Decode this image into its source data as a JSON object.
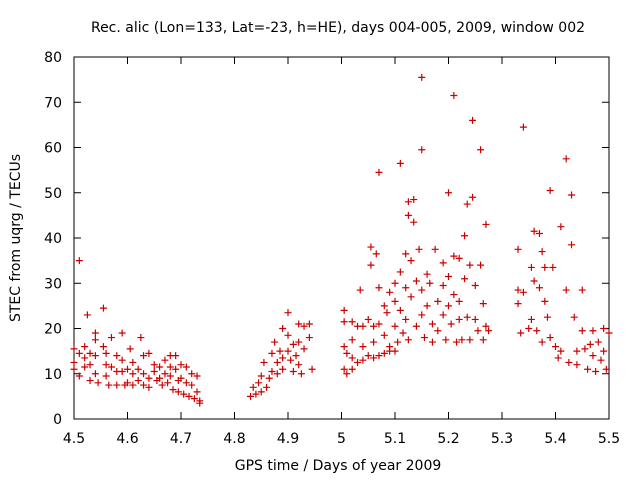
{
  "chart_data": {
    "type": "scatter",
    "title": "Rec. alic (Lon=133, Lat=-23, h=HE), days 004-005, 2009, window 002",
    "xlabel": "GPS time / Days of year 2009",
    "ylabel": "STEC from uqrg / TECUs",
    "xlim": [
      4.5,
      5.5
    ],
    "ylim": [
      0,
      80
    ],
    "x_ticks": [
      4.5,
      4.6,
      4.7,
      4.8,
      4.9,
      5.0,
      5.1,
      5.2,
      5.3,
      5.4,
      5.5
    ],
    "x_tick_labels": [
      "4.5",
      "4.6",
      "4.7",
      "4.8",
      "4.9",
      "5",
      "5.1",
      "5.2",
      "5.3",
      "5.4",
      "5.5"
    ],
    "y_ticks": [
      0,
      10,
      20,
      30,
      40,
      50,
      60,
      70,
      80
    ],
    "y_tick_labels": [
      "0",
      "10",
      "20",
      "30",
      "40",
      "50",
      "60",
      "70",
      "80"
    ],
    "grid": false,
    "marker": "plus",
    "color": "#cc0000",
    "series": [
      {
        "name": "STEC",
        "points": [
          [
            4.5,
            15.5
          ],
          [
            4.5,
            12.5
          ],
          [
            4.5,
            11.0
          ],
          [
            4.51,
            35.0
          ],
          [
            4.51,
            14.5
          ],
          [
            4.51,
            9.5
          ],
          [
            4.52,
            16.0
          ],
          [
            4.52,
            13.5
          ],
          [
            4.52,
            11.5
          ],
          [
            4.525,
            23.0
          ],
          [
            4.53,
            14.5
          ],
          [
            4.53,
            12.0
          ],
          [
            4.53,
            8.5
          ],
          [
            4.54,
            19.0
          ],
          [
            4.54,
            17.5
          ],
          [
            4.54,
            14.0
          ],
          [
            4.54,
            10.0
          ],
          [
            4.545,
            8.0
          ],
          [
            4.555,
            24.5
          ],
          [
            4.555,
            16.0
          ],
          [
            4.56,
            14.5
          ],
          [
            4.56,
            12.0
          ],
          [
            4.56,
            9.5
          ],
          [
            4.565,
            7.5
          ],
          [
            4.57,
            18.0
          ],
          [
            4.57,
            11.5
          ],
          [
            4.58,
            14.0
          ],
          [
            4.58,
            10.5
          ],
          [
            4.58,
            7.5
          ],
          [
            4.59,
            19.0
          ],
          [
            4.59,
            13.0
          ],
          [
            4.59,
            10.5
          ],
          [
            4.595,
            7.5
          ],
          [
            4.6,
            11.0
          ],
          [
            4.6,
            8.0
          ],
          [
            4.605,
            15.5
          ],
          [
            4.61,
            12.5
          ],
          [
            4.61,
            10.0
          ],
          [
            4.61,
            7.5
          ],
          [
            4.62,
            11.0
          ],
          [
            4.62,
            8.5
          ],
          [
            4.625,
            18.0
          ],
          [
            4.63,
            14.0
          ],
          [
            4.63,
            10.0
          ],
          [
            4.63,
            7.5
          ],
          [
            4.64,
            14.5
          ],
          [
            4.64,
            9.0
          ],
          [
            4.64,
            7.0
          ],
          [
            4.65,
            12.0
          ],
          [
            4.65,
            10.5
          ],
          [
            4.655,
            8.5
          ],
          [
            4.66,
            11.5
          ],
          [
            4.66,
            9.0
          ],
          [
            4.665,
            7.5
          ],
          [
            4.67,
            13.0
          ],
          [
            4.67,
            10.0
          ],
          [
            4.675,
            8.0
          ],
          [
            4.68,
            14.0
          ],
          [
            4.68,
            11.5
          ],
          [
            4.68,
            9.5
          ],
          [
            4.685,
            6.5
          ],
          [
            4.69,
            14.0
          ],
          [
            4.69,
            11.0
          ],
          [
            4.695,
            8.5
          ],
          [
            4.695,
            6.0
          ],
          [
            4.7,
            12.0
          ],
          [
            4.7,
            9.0
          ],
          [
            4.705,
            5.5
          ],
          [
            4.71,
            11.5
          ],
          [
            4.71,
            8.0
          ],
          [
            4.715,
            5.0
          ],
          [
            4.72,
            10.0
          ],
          [
            4.72,
            7.5
          ],
          [
            4.725,
            4.5
          ],
          [
            4.73,
            9.5
          ],
          [
            4.73,
            6.0
          ],
          [
            4.735,
            3.5
          ],
          [
            4.735,
            4.0
          ],
          [
            4.83,
            5.0
          ],
          [
            4.835,
            7.0
          ],
          [
            4.84,
            5.5
          ],
          [
            4.845,
            8.0
          ],
          [
            4.85,
            6.0
          ],
          [
            4.85,
            9.5
          ],
          [
            4.855,
            12.5
          ],
          [
            4.86,
            7.0
          ],
          [
            4.865,
            9.0
          ],
          [
            4.87,
            14.5
          ],
          [
            4.87,
            10.5
          ],
          [
            4.875,
            17.0
          ],
          [
            4.88,
            12.5
          ],
          [
            4.88,
            10.0
          ],
          [
            4.885,
            15.0
          ],
          [
            4.89,
            20.0
          ],
          [
            4.89,
            13.5
          ],
          [
            4.89,
            11.0
          ],
          [
            4.9,
            23.5
          ],
          [
            4.9,
            18.5
          ],
          [
            4.9,
            15.0
          ],
          [
            4.905,
            13.0
          ],
          [
            4.91,
            16.5
          ],
          [
            4.91,
            10.5
          ],
          [
            4.915,
            14.0
          ],
          [
            4.92,
            21.0
          ],
          [
            4.92,
            17.0
          ],
          [
            4.92,
            12.0
          ],
          [
            4.925,
            10.0
          ],
          [
            4.93,
            20.5
          ],
          [
            4.93,
            15.5
          ],
          [
            4.94,
            21.0
          ],
          [
            4.94,
            18.0
          ],
          [
            4.945,
            11.0
          ],
          [
            5.005,
            24.0
          ],
          [
            5.005,
            21.5
          ],
          [
            5.005,
            16.0
          ],
          [
            5.005,
            11.0
          ],
          [
            5.01,
            14.5
          ],
          [
            5.01,
            10.0
          ],
          [
            5.02,
            21.5
          ],
          [
            5.02,
            17.5
          ],
          [
            5.02,
            13.5
          ],
          [
            5.02,
            11.0
          ],
          [
            5.03,
            20.5
          ],
          [
            5.03,
            12.5
          ],
          [
            5.035,
            28.5
          ],
          [
            5.04,
            20.5
          ],
          [
            5.04,
            16.0
          ],
          [
            5.04,
            13.0
          ],
          [
            5.05,
            22.0
          ],
          [
            5.05,
            14.0
          ],
          [
            5.055,
            38.0
          ],
          [
            5.055,
            34.0
          ],
          [
            5.06,
            20.5
          ],
          [
            5.06,
            17.0
          ],
          [
            5.06,
            13.5
          ],
          [
            5.065,
            36.5
          ],
          [
            5.07,
            29.0
          ],
          [
            5.07,
            21.0
          ],
          [
            5.07,
            14.0
          ],
          [
            5.07,
            54.5
          ],
          [
            5.08,
            25.0
          ],
          [
            5.08,
            18.5
          ],
          [
            5.08,
            14.5
          ],
          [
            5.085,
            23.5
          ],
          [
            5.09,
            28.0
          ],
          [
            5.09,
            16.0
          ],
          [
            5.09,
            15.0
          ],
          [
            5.1,
            30.0
          ],
          [
            5.1,
            26.0
          ],
          [
            5.1,
            20.5
          ],
          [
            5.1,
            15.0
          ],
          [
            5.105,
            17.0
          ],
          [
            5.11,
            56.5
          ],
          [
            5.11,
            32.5
          ],
          [
            5.11,
            24.0
          ],
          [
            5.115,
            19.0
          ],
          [
            5.12,
            36.5
          ],
          [
            5.12,
            29.0
          ],
          [
            5.12,
            22.0
          ],
          [
            5.125,
            48.0
          ],
          [
            5.125,
            45.0
          ],
          [
            5.125,
            17.5
          ],
          [
            5.13,
            35.0
          ],
          [
            5.13,
            27.0
          ],
          [
            5.135,
            48.5
          ],
          [
            5.135,
            43.5
          ],
          [
            5.14,
            30.5
          ],
          [
            5.14,
            20.5
          ],
          [
            5.145,
            37.5
          ],
          [
            5.15,
            75.5
          ],
          [
            5.15,
            59.5
          ],
          [
            5.15,
            28.5
          ],
          [
            5.15,
            23.0
          ],
          [
            5.155,
            18.0
          ],
          [
            5.16,
            32.0
          ],
          [
            5.16,
            25.0
          ],
          [
            5.165,
            30.0
          ],
          [
            5.17,
            21.0
          ],
          [
            5.17,
            17.0
          ],
          [
            5.175,
            37.5
          ],
          [
            5.18,
            26.0
          ],
          [
            5.18,
            19.5
          ],
          [
            5.19,
            34.5
          ],
          [
            5.19,
            29.5
          ],
          [
            5.19,
            23.0
          ],
          [
            5.195,
            17.5
          ],
          [
            5.2,
            50.0
          ],
          [
            5.2,
            31.5
          ],
          [
            5.2,
            25.0
          ],
          [
            5.205,
            21.0
          ],
          [
            5.21,
            71.5
          ],
          [
            5.21,
            36.0
          ],
          [
            5.21,
            27.5
          ],
          [
            5.215,
            17.0
          ],
          [
            5.22,
            35.5
          ],
          [
            5.22,
            26.0
          ],
          [
            5.22,
            22.0
          ],
          [
            5.225,
            17.5
          ],
          [
            5.23,
            40.5
          ],
          [
            5.23,
            31.0
          ],
          [
            5.235,
            47.5
          ],
          [
            5.235,
            22.5
          ],
          [
            5.24,
            34.0
          ],
          [
            5.24,
            17.5
          ],
          [
            5.245,
            66.0
          ],
          [
            5.245,
            49.0
          ],
          [
            5.25,
            29.5
          ],
          [
            5.25,
            22.0
          ],
          [
            5.255,
            19.5
          ],
          [
            5.26,
            59.5
          ],
          [
            5.26,
            34.0
          ],
          [
            5.265,
            25.5
          ],
          [
            5.265,
            17.5
          ],
          [
            5.27,
            43.0
          ],
          [
            5.27,
            20.5
          ],
          [
            5.275,
            19.5
          ],
          [
            5.33,
            37.5
          ],
          [
            5.33,
            28.5
          ],
          [
            5.33,
            25.5
          ],
          [
            5.335,
            19.0
          ],
          [
            5.34,
            64.5
          ],
          [
            5.34,
            28.0
          ],
          [
            5.35,
            20.0
          ],
          [
            5.355,
            33.5
          ],
          [
            5.355,
            22.0
          ],
          [
            5.36,
            41.5
          ],
          [
            5.36,
            30.5
          ],
          [
            5.365,
            19.5
          ],
          [
            5.37,
            41.0
          ],
          [
            5.37,
            29.0
          ],
          [
            5.375,
            37.0
          ],
          [
            5.375,
            17.0
          ],
          [
            5.38,
            33.5
          ],
          [
            5.38,
            26.0
          ],
          [
            5.385,
            22.5
          ],
          [
            5.39,
            50.5
          ],
          [
            5.39,
            18.0
          ],
          [
            5.395,
            33.5
          ],
          [
            5.4,
            16.0
          ],
          [
            5.405,
            13.5
          ],
          [
            5.41,
            42.5
          ],
          [
            5.41,
            15.0
          ],
          [
            5.42,
            57.5
          ],
          [
            5.42,
            28.5
          ],
          [
            5.425,
            12.5
          ],
          [
            5.43,
            49.5
          ],
          [
            5.43,
            38.5
          ],
          [
            5.435,
            22.5
          ],
          [
            5.44,
            15.0
          ],
          [
            5.44,
            12.0
          ],
          [
            5.45,
            28.5
          ],
          [
            5.45,
            19.5
          ],
          [
            5.455,
            15.5
          ],
          [
            5.46,
            11.0
          ],
          [
            5.465,
            16.5
          ],
          [
            5.47,
            19.5
          ],
          [
            5.47,
            14.0
          ],
          [
            5.475,
            10.5
          ],
          [
            5.48,
            17.0
          ],
          [
            5.485,
            13.0
          ],
          [
            5.49,
            20.0
          ],
          [
            5.49,
            15.0
          ],
          [
            5.495,
            11.0
          ],
          [
            5.5,
            19.0
          ]
        ]
      }
    ]
  }
}
